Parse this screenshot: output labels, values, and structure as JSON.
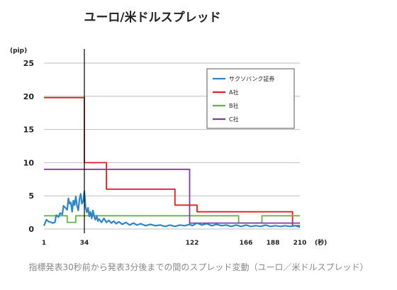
{
  "chart_data": {
    "type": "line",
    "title": "ユーロ/米ドルスプレッド",
    "ylabel": "(pip)",
    "xlabel": "(秒)",
    "xlim": [
      1,
      210
    ],
    "ylim": [
      0,
      25
    ],
    "x_ticks": [
      1,
      34,
      122,
      166,
      188,
      210
    ],
    "y_ticks": [
      0,
      5,
      10,
      15,
      20,
      25
    ],
    "grid": "horizontal",
    "legend_position": "top-right",
    "announcement_x": 34,
    "series": [
      {
        "name": "サクソバンク証券",
        "color": "#2e86c8",
        "points": [
          [
            1,
            0.5
          ],
          [
            3,
            1.4
          ],
          [
            5,
            1.1
          ],
          [
            7,
            1.0
          ],
          [
            8,
            0.9
          ],
          [
            10,
            1.0
          ],
          [
            11,
            2.1
          ],
          [
            13,
            1.8
          ],
          [
            14,
            2.4
          ],
          [
            16,
            2.2
          ],
          [
            17,
            3.5
          ],
          [
            19,
            3.1
          ],
          [
            20,
            2.9
          ],
          [
            21,
            4.6
          ],
          [
            22,
            3.8
          ],
          [
            23,
            4.0
          ],
          [
            24,
            2.6
          ],
          [
            25,
            4.3
          ],
          [
            26,
            3.6
          ],
          [
            27,
            4.9
          ],
          [
            28,
            3.5
          ],
          [
            29,
            2.8
          ],
          [
            30,
            4.5
          ],
          [
            31,
            5.3
          ],
          [
            32,
            3.8
          ],
          [
            33,
            4.2
          ],
          [
            34,
            5.7
          ],
          [
            35,
            3.3
          ],
          [
            36,
            2.5
          ],
          [
            37,
            3.2
          ],
          [
            38,
            1.9
          ],
          [
            39,
            2.6
          ],
          [
            40,
            1.6
          ],
          [
            41,
            2.8
          ],
          [
            42,
            1.9
          ],
          [
            43,
            1.4
          ],
          [
            44,
            2.0
          ],
          [
            45,
            1.2
          ],
          [
            46,
            1.5
          ],
          [
            48,
            1.0
          ],
          [
            50,
            1.6
          ],
          [
            52,
            1.0
          ],
          [
            54,
            1.3
          ],
          [
            56,
            0.9
          ],
          [
            58,
            1.2
          ],
          [
            60,
            0.8
          ],
          [
            62,
            1.1
          ],
          [
            65,
            0.7
          ],
          [
            68,
            1.0
          ],
          [
            71,
            0.6
          ],
          [
            74,
            0.9
          ],
          [
            77,
            0.6
          ],
          [
            80,
            0.8
          ],
          [
            84,
            0.5
          ],
          [
            88,
            0.7
          ],
          [
            92,
            0.5
          ],
          [
            96,
            0.6
          ],
          [
            100,
            0.4
          ],
          [
            104,
            0.6
          ],
          [
            108,
            0.4
          ],
          [
            112,
            0.6
          ],
          [
            116,
            0.5
          ],
          [
            120,
            0.7
          ],
          [
            122,
            0.5
          ],
          [
            126,
            0.9
          ],
          [
            130,
            0.6
          ],
          [
            134,
            0.8
          ],
          [
            138,
            0.5
          ],
          [
            142,
            0.7
          ],
          [
            146,
            0.5
          ],
          [
            150,
            0.6
          ],
          [
            154,
            0.4
          ],
          [
            158,
            0.6
          ],
          [
            162,
            0.4
          ],
          [
            166,
            0.6
          ],
          [
            170,
            0.4
          ],
          [
            174,
            0.5
          ],
          [
            178,
            0.4
          ],
          [
            182,
            0.6
          ],
          [
            186,
            0.4
          ],
          [
            190,
            0.5
          ],
          [
            194,
            0.4
          ],
          [
            198,
            0.5
          ],
          [
            202,
            0.4
          ],
          [
            206,
            0.5
          ],
          [
            210,
            0.3
          ]
        ]
      },
      {
        "name": "A社",
        "color": "#e02020",
        "points": [
          [
            1,
            19.8
          ],
          [
            34,
            19.8
          ],
          [
            34,
            10.0
          ],
          [
            52,
            10.0
          ],
          [
            52,
            6.0
          ],
          [
            108,
            6.0
          ],
          [
            108,
            3.6
          ],
          [
            126,
            3.6
          ],
          [
            126,
            2.6
          ],
          [
            204,
            2.6
          ],
          [
            204,
            0.5
          ],
          [
            210,
            0.5
          ]
        ]
      },
      {
        "name": "B社",
        "color": "#6ab04c",
        "points": [
          [
            1,
            2.0
          ],
          [
            20,
            2.0
          ],
          [
            20,
            1.0
          ],
          [
            27,
            1.0
          ],
          [
            27,
            2.0
          ],
          [
            160,
            2.0
          ],
          [
            160,
            0.9
          ],
          [
            179,
            0.9
          ],
          [
            179,
            2.0
          ],
          [
            210,
            2.0
          ]
        ]
      },
      {
        "name": "C社",
        "color": "#7b3fa0",
        "points": [
          [
            1,
            9.0
          ],
          [
            120,
            9.0
          ],
          [
            120,
            0.9
          ],
          [
            210,
            0.9
          ]
        ]
      }
    ]
  },
  "caption": "指標発表30秒前から発表3分後までの間のスプレッド変動（ユーロ／米ドルスプレッド）"
}
